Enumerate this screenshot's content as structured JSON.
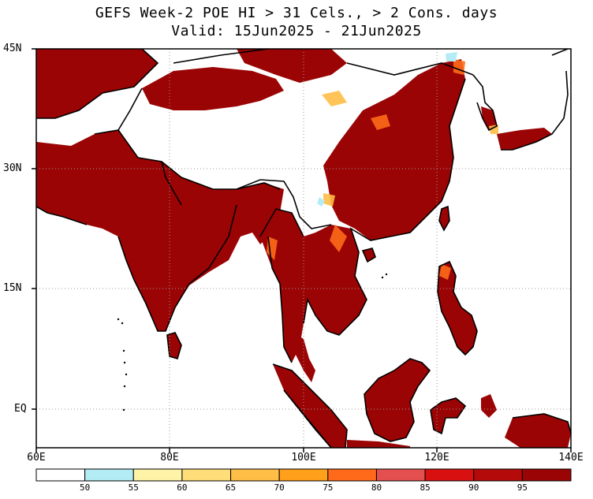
{
  "title": {
    "line1": "GEFS Week-2 POE HI > 31 Cels., > 2 Cons. days",
    "line2": "Valid: 15Jun2025 - 21Jun2025"
  },
  "map": {
    "lat_labels": [
      "45N",
      "30N",
      "15N",
      "EQ"
    ],
    "lon_labels": [
      "60E",
      "80E",
      "100E",
      "120E",
      "140E"
    ],
    "grid": true
  },
  "colorbar": {
    "labels": [
      "50",
      "55",
      "60",
      "65",
      "70",
      "75",
      "80",
      "85",
      "90",
      "95"
    ],
    "colors": [
      "#ffffff",
      "#b4ecf5",
      "#fff3a8",
      "#ffdd78",
      "#ffbe46",
      "#ff9f1a",
      "#ff6a1a",
      "#e44f4f",
      "#d81010",
      "#b40a0a",
      "#9b0404"
    ]
  }
}
